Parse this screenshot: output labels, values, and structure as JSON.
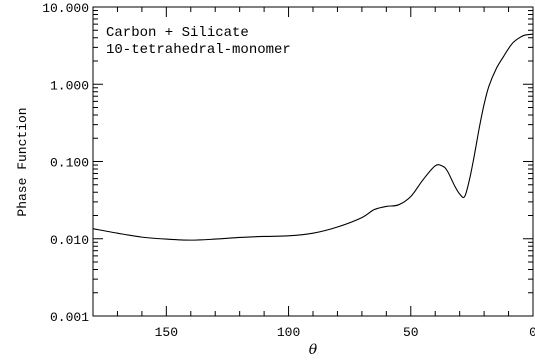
{
  "chart_data": {
    "type": "line",
    "annotations": [
      "Carbon + Silicate",
      "10-tetrahedral-monomer"
    ],
    "xlabel": "θ",
    "ylabel": "Phase Function",
    "xlim": [
      180,
      0
    ],
    "ylim": [
      0.001,
      10
    ],
    "yscale": "log",
    "grid": false,
    "x_ticks": [
      150,
      100,
      50,
      0
    ],
    "x_tick_labels": [
      "150",
      "100",
      "50",
      "0"
    ],
    "y_ticks": [
      0.001,
      0.01,
      0.1,
      1,
      10
    ],
    "y_tick_labels": [
      "0.001",
      "0.010",
      "0.100",
      "1.000",
      "10.000"
    ],
    "series": [
      {
        "x": [
          180,
          170,
          160,
          150,
          140,
          130,
          120,
          110,
          100,
          90,
          80,
          70,
          65,
          60,
          55,
          50,
          45,
          40,
          37,
          35,
          32,
          30,
          28,
          26,
          24,
          22,
          20,
          18,
          15,
          12,
          10,
          8,
          5,
          3,
          0
        ],
        "y": [
          0.0135,
          0.0118,
          0.0105,
          0.0099,
          0.0096,
          0.0099,
          0.0104,
          0.0107,
          0.0109,
          0.0118,
          0.0142,
          0.0188,
          0.0238,
          0.0262,
          0.0275,
          0.0352,
          0.058,
          0.088,
          0.087,
          0.075,
          0.048,
          0.038,
          0.035,
          0.058,
          0.12,
          0.27,
          0.55,
          0.95,
          1.6,
          2.3,
          2.9,
          3.5,
          4.1,
          4.35,
          4.45
        ]
      }
    ]
  }
}
